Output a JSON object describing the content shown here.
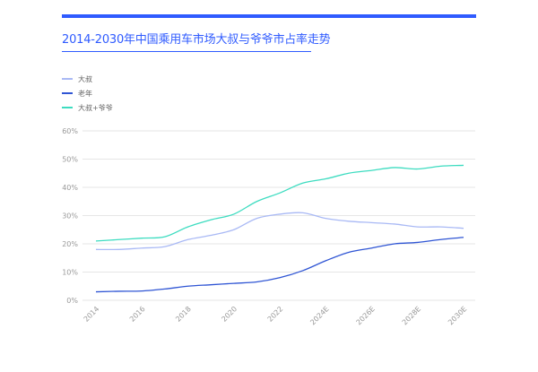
{
  "header": {
    "title": "2014-2030年中国乘用车市场大叔与爷爷市占率走势"
  },
  "colors": {
    "accent": "#2f5bff",
    "grid": "#e6e6e6",
    "axis_text": "#999999"
  },
  "chart_data": {
    "type": "line",
    "title": "2014-2030年中国乘用车市场大叔与爷爷市占率走势",
    "xlabel": "",
    "ylabel": "",
    "x": [
      2014,
      2015,
      2016,
      2017,
      2018,
      2019,
      2020,
      2021,
      2022,
      2023,
      2024,
      2025,
      2026,
      2027,
      2028,
      2029,
      2030
    ],
    "x_tick_labels": [
      "2014",
      "2016",
      "2018",
      "2020",
      "2022",
      "2024E",
      "2026E",
      "2028E",
      "2030E"
    ],
    "x_tick_values": [
      2014,
      2016,
      2018,
      2020,
      2022,
      2024,
      2026,
      2028,
      2030
    ],
    "ylim": [
      0,
      60
    ],
    "y_ticks": [
      0,
      10,
      20,
      30,
      40,
      50,
      60
    ],
    "y_tick_labels": [
      "0%",
      "10%",
      "20%",
      "30%",
      "40%",
      "50%",
      "60%"
    ],
    "grid": true,
    "legend_position": "top-left",
    "series": [
      {
        "name": "大叔",
        "color": "#a9b9f5",
        "values": [
          18.0,
          18.0,
          18.5,
          19.0,
          21.5,
          23.0,
          25.0,
          29.0,
          30.5,
          31.0,
          29.0,
          28.0,
          27.5,
          27.0,
          26.0,
          26.0,
          25.5
        ]
      },
      {
        "name": "老年",
        "color": "#2f55d4",
        "values": [
          3.0,
          3.2,
          3.3,
          4.0,
          5.0,
          5.5,
          6.0,
          6.5,
          8.0,
          10.5,
          14.0,
          17.0,
          18.5,
          20.0,
          20.5,
          21.5,
          22.3
        ]
      },
      {
        "name": "大叔+爷爷",
        "color": "#3ddcc0",
        "values": [
          21.0,
          21.5,
          22.0,
          22.5,
          26.0,
          28.5,
          30.5,
          35.0,
          38.0,
          41.5,
          43.0,
          45.0,
          46.0,
          47.0,
          46.5,
          47.5,
          47.8
        ]
      }
    ]
  }
}
